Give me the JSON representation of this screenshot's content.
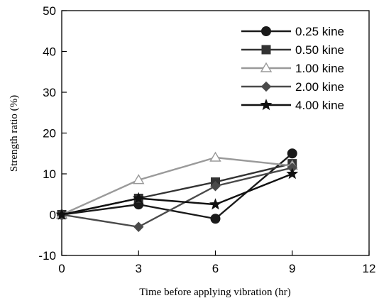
{
  "chart_data": {
    "type": "line",
    "xlabel": "Time before applying vibration (hr)",
    "ylabel": "Strength ratio (%)",
    "xlim": [
      0,
      12
    ],
    "ylim": [
      -10,
      50
    ],
    "xticks": [
      0,
      3,
      6,
      9,
      12
    ],
    "yticks": [
      -10,
      0,
      10,
      20,
      30,
      40,
      50
    ],
    "grid": false,
    "legend_position": "top-right",
    "x": [
      0,
      3,
      6,
      9
    ],
    "series": [
      {
        "name": "0.25 kine",
        "marker": "circle",
        "color": "#1a1a1a",
        "values": [
          0,
          2.5,
          -1,
          15
        ]
      },
      {
        "name": "0.50 kine",
        "marker": "square",
        "color": "#333333",
        "values": [
          0,
          4,
          8,
          12.5
        ]
      },
      {
        "name": "1.00 kine",
        "marker": "triangle",
        "color": "#9a9a9a",
        "values": [
          0,
          8.5,
          14,
          12
        ]
      },
      {
        "name": "2.00 kine",
        "marker": "diamond",
        "color": "#4a4a4a",
        "values": [
          0,
          -3,
          7,
          11.5
        ]
      },
      {
        "name": "4.00 kine",
        "marker": "star",
        "color": "#111111",
        "values": [
          0,
          4,
          2.5,
          10
        ]
      }
    ]
  }
}
